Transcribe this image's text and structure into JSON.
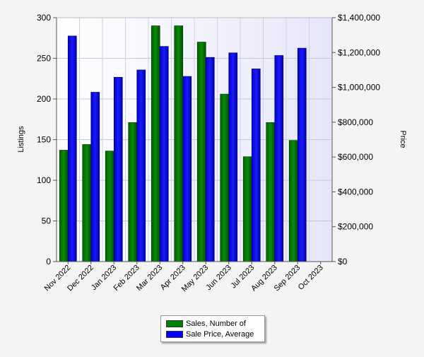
{
  "chart_data": {
    "type": "bar",
    "categories": [
      "Nov 2022",
      "Dec 2022",
      "Jan 2023",
      "Feb 2023",
      "Mar 2023",
      "Apr 2023",
      "May 2023",
      "Jun 2023",
      "Jul 2023",
      "Aug 2023",
      "Sep 2023",
      "Oct 2023"
    ],
    "series": [
      {
        "name": "Sales, Number of",
        "axis": "left",
        "color": "#008000",
        "values": [
          137,
          144,
          136,
          171,
          290,
          290,
          270,
          206,
          129,
          171,
          149,
          null
        ]
      },
      {
        "name": "Sale Price, Average",
        "axis": "right",
        "color": "#0000ff",
        "values": [
          1295000,
          972000,
          1058000,
          1100000,
          1235000,
          1063000,
          1172000,
          1198000,
          1106000,
          1183000,
          1225000,
          null
        ]
      }
    ],
    "ylabel": "Listings",
    "y2label": "Price",
    "ylim": [
      0,
      300
    ],
    "y2lim": [
      0,
      1400000
    ],
    "yticks": [
      "0",
      "50",
      "100",
      "150",
      "200",
      "250",
      "300"
    ],
    "y2ticks": [
      "$0",
      "$200,000",
      "$400,000",
      "$600,000",
      "$800,000",
      "$1,000,000",
      "$1,200,000",
      "$1,400,000"
    ],
    "grid": true,
    "legend_position": "bottom-center"
  }
}
